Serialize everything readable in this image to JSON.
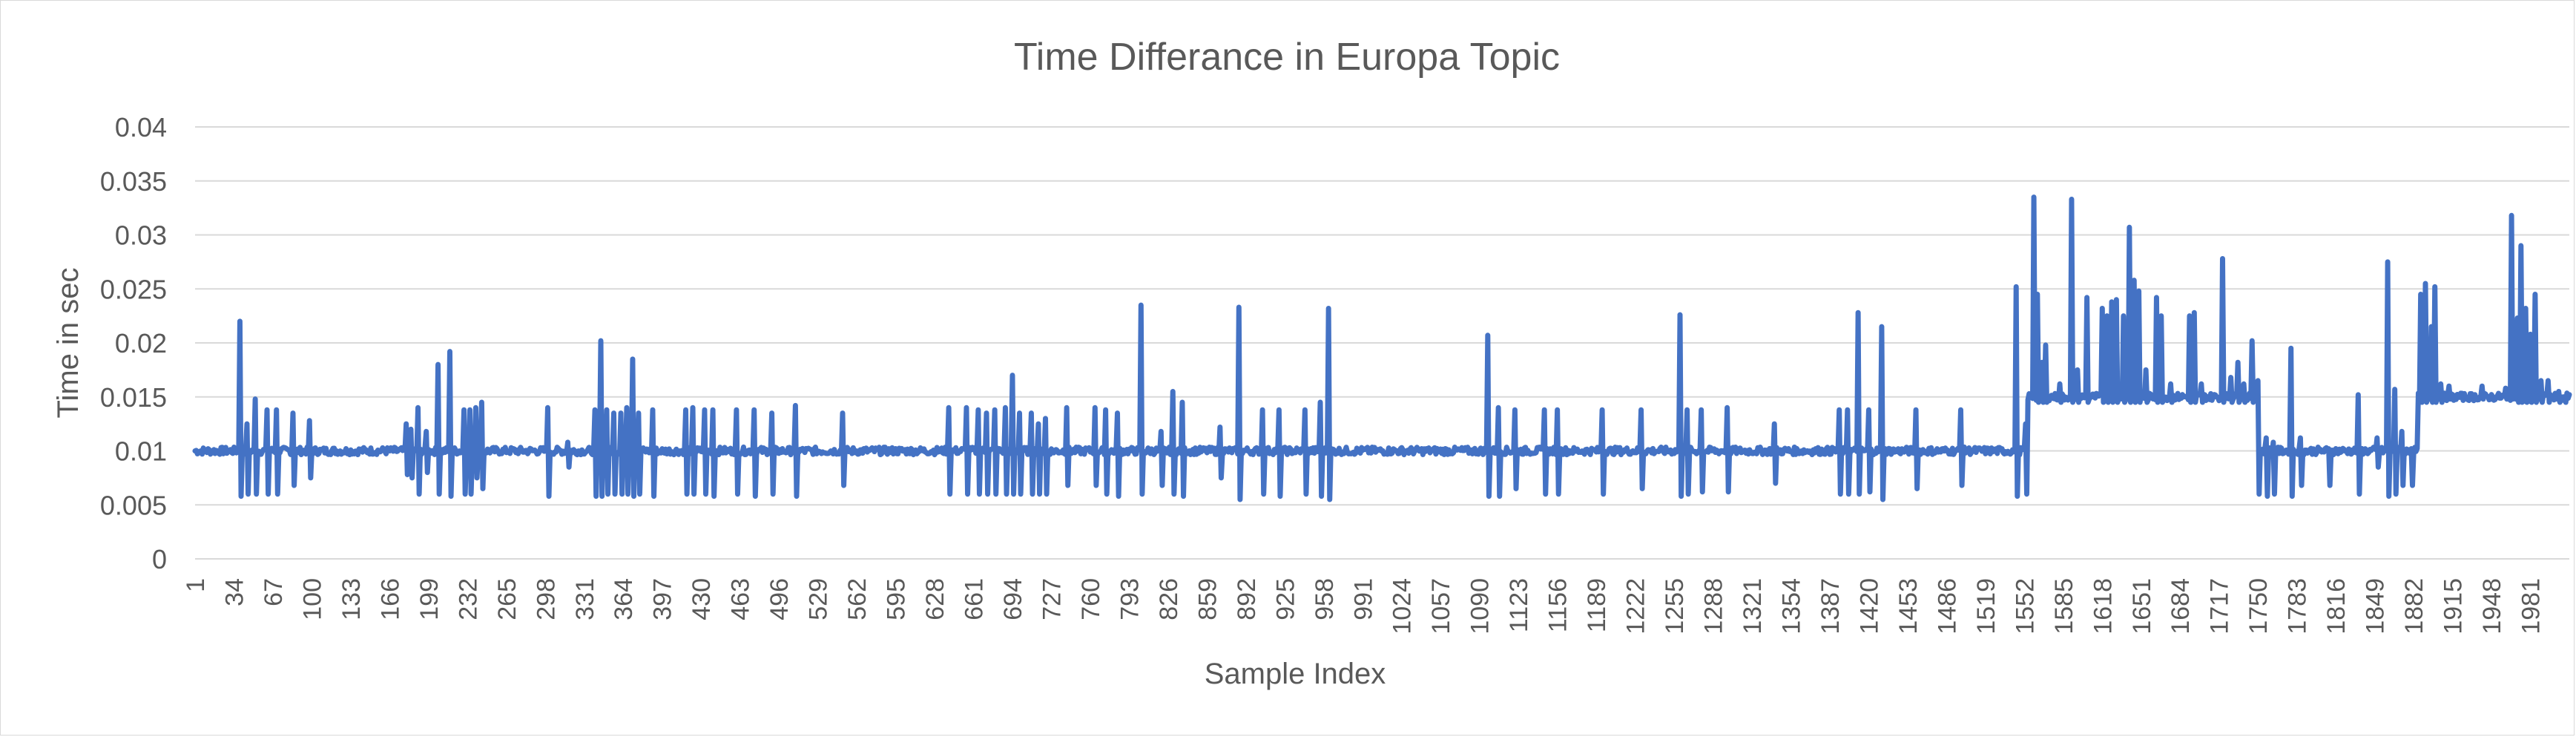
{
  "chart_data": {
    "type": "line",
    "title": "Time Differance in Europa Topic",
    "xlabel": "Sample Index",
    "ylabel": "Time in sec",
    "ylim": [
      0,
      0.04
    ],
    "y_ticks": [
      "0",
      "0.005",
      "0.01",
      "0.015",
      "0.02",
      "0.025",
      "0.03",
      "0.035",
      "0.04"
    ],
    "x_range": [
      1,
      2014
    ],
    "x_ticks": [
      "1",
      "34",
      "67",
      "100",
      "133",
      "166",
      "199",
      "232",
      "265",
      "298",
      "331",
      "364",
      "397",
      "430",
      "463",
      "496",
      "529",
      "562",
      "595",
      "628",
      "661",
      "694",
      "727",
      "760",
      "793",
      "826",
      "859",
      "892",
      "925",
      "958",
      "991",
      "1024",
      "1057",
      "1090",
      "1123",
      "1156",
      "1189",
      "1222",
      "1255",
      "1288",
      "1321",
      "1354",
      "1387",
      "1420",
      "1453",
      "1486",
      "1519",
      "1552",
      "1585",
      "1618",
      "1651",
      "1684",
      "1717",
      "1750",
      "1783",
      "1816",
      "1849",
      "1882",
      "1915",
      "1948",
      "1981"
    ],
    "grid": true,
    "legend": "none",
    "series_color": "#4472c4",
    "series": [
      {
        "baseline_segments": [
          {
            "from": 1,
            "to": 1552,
            "value": 0.01
          },
          {
            "from": 1553,
            "to": 1751,
            "value": 0.015
          },
          {
            "from": 1752,
            "to": 1885,
            "value": 0.01
          },
          {
            "from": 1886,
            "to": 2014,
            "value": 0.015
          }
        ],
        "spikes": [
          [
            39,
            0.022,
            0.0058
          ],
          [
            45,
            0.0125,
            0.006
          ],
          [
            52,
            0.0148,
            0.006
          ],
          [
            62,
            0.0138,
            0.006
          ],
          [
            70,
            0.0138,
            0.006
          ],
          [
            84,
            0.0135,
            0.0068
          ],
          [
            98,
            0.0128,
            0.0075
          ],
          [
            180,
            0.0125,
            0.0078
          ],
          [
            184,
            0.012,
            0.0075
          ],
          [
            190,
            0.014,
            0.006
          ],
          [
            197,
            0.0118,
            0.008
          ],
          [
            207,
            0.018,
            0.006
          ],
          [
            217,
            0.0192,
            0.0058
          ],
          [
            229,
            0.0138,
            0.006
          ],
          [
            234,
            0.0138,
            0.006
          ],
          [
            239,
            0.014,
            0.0075
          ],
          [
            244,
            0.0145,
            0.0065
          ],
          [
            300,
            0.014,
            0.0058
          ],
          [
            317,
            0.0108,
            0.0085
          ],
          [
            340,
            0.0138,
            0.0058
          ],
          [
            345,
            0.0202,
            0.0058
          ],
          [
            350,
            0.0138,
            0.006
          ],
          [
            356,
            0.0135,
            0.006
          ],
          [
            362,
            0.0135,
            0.006
          ],
          [
            367,
            0.014,
            0.006
          ],
          [
            372,
            0.0185,
            0.0058
          ],
          [
            377,
            0.0135,
            0.006
          ],
          [
            389,
            0.0138,
            0.0058
          ],
          [
            417,
            0.0138,
            0.006
          ],
          [
            423,
            0.014,
            0.006
          ],
          [
            433,
            0.0138,
            0.006
          ],
          [
            440,
            0.0138,
            0.0058
          ],
          [
            460,
            0.0138,
            0.006
          ],
          [
            475,
            0.0138,
            0.0058
          ],
          [
            490,
            0.0135,
            0.006
          ],
          [
            510,
            0.0142,
            0.0058
          ],
          [
            550,
            0.0135,
            0.0068
          ],
          [
            640,
            0.014,
            0.006
          ],
          [
            655,
            0.014,
            0.006
          ],
          [
            665,
            0.0138,
            0.006
          ],
          [
            672,
            0.0135,
            0.006
          ],
          [
            679,
            0.0138,
            0.006
          ],
          [
            688,
            0.014,
            0.006
          ],
          [
            694,
            0.017,
            0.006
          ],
          [
            700,
            0.0135,
            0.006
          ],
          [
            710,
            0.0135,
            0.006
          ],
          [
            716,
            0.0125,
            0.006
          ],
          [
            722,
            0.013,
            0.006
          ],
          [
            740,
            0.014,
            0.0068
          ],
          [
            764,
            0.014,
            0.0068
          ],
          [
            773,
            0.0138,
            0.006
          ],
          [
            783,
            0.0135,
            0.0058
          ],
          [
            803,
            0.0235,
            0.006
          ],
          [
            820,
            0.0118,
            0.0068
          ],
          [
            830,
            0.0155,
            0.006
          ],
          [
            838,
            0.0145,
            0.0058
          ],
          [
            870,
            0.0122,
            0.0075
          ],
          [
            886,
            0.0233,
            0.0055
          ],
          [
            906,
            0.0138,
            0.006
          ],
          [
            920,
            0.0138,
            0.0058
          ],
          [
            942,
            0.0138,
            0.006
          ],
          [
            955,
            0.0145,
            0.0058
          ],
          [
            962,
            0.0232,
            0.0055
          ],
          [
            1097,
            0.0207,
            0.0058
          ],
          [
            1106,
            0.014,
            0.0058
          ],
          [
            1120,
            0.0138,
            0.0065
          ],
          [
            1145,
            0.0138,
            0.006
          ],
          [
            1156,
            0.0138,
            0.006
          ],
          [
            1194,
            0.0138,
            0.006
          ],
          [
            1227,
            0.0138,
            0.0065
          ],
          [
            1260,
            0.0226,
            0.0058
          ],
          [
            1266,
            0.0138,
            0.006
          ],
          [
            1278,
            0.0138,
            0.0062
          ],
          [
            1300,
            0.014,
            0.0062
          ],
          [
            1340,
            0.0125,
            0.007
          ],
          [
            1395,
            0.0138,
            0.006
          ],
          [
            1402,
            0.0138,
            0.006
          ],
          [
            1411,
            0.0228,
            0.006
          ],
          [
            1420,
            0.0138,
            0.0062
          ],
          [
            1431,
            0.0215,
            0.0055
          ],
          [
            1460,
            0.0138,
            0.0065
          ],
          [
            1498,
            0.0138,
            0.0068
          ],
          [
            1545,
            0.0252,
            0.0058
          ],
          [
            1553,
            0.0125,
            0.006
          ],
          [
            1560,
            0.0335,
            0.015
          ],
          [
            1563,
            0.0245,
            0.0145
          ],
          [
            1567,
            0.0182,
            0.0145
          ],
          [
            1570,
            0.0198,
            0.0145
          ],
          [
            1582,
            0.0162,
            0.0145
          ],
          [
            1592,
            0.0333,
            0.0145
          ],
          [
            1597,
            0.0175,
            0.0145
          ],
          [
            1605,
            0.0242,
            0.0145
          ],
          [
            1618,
            0.0232,
            0.0145
          ],
          [
            1622,
            0.0225,
            0.0145
          ],
          [
            1626,
            0.0238,
            0.0145
          ],
          [
            1630,
            0.024,
            0.0145
          ],
          [
            1636,
            0.0225,
            0.0145
          ],
          [
            1641,
            0.0307,
            0.0145
          ],
          [
            1645,
            0.0258,
            0.0145
          ],
          [
            1649,
            0.0248,
            0.0145
          ],
          [
            1655,
            0.0175,
            0.0145
          ],
          [
            1664,
            0.0242,
            0.0145
          ],
          [
            1668,
            0.0225,
            0.0145
          ],
          [
            1676,
            0.0162,
            0.0145
          ],
          [
            1692,
            0.0225,
            0.0145
          ],
          [
            1696,
            0.0228,
            0.0145
          ],
          [
            1702,
            0.0162,
            0.0145
          ],
          [
            1720,
            0.0278,
            0.0145
          ],
          [
            1727,
            0.0168,
            0.0145
          ],
          [
            1733,
            0.0182,
            0.0145
          ],
          [
            1738,
            0.0162,
            0.0145
          ],
          [
            1745,
            0.0202,
            0.0145
          ],
          [
            1750,
            0.0165,
            0.006
          ],
          [
            1757,
            0.0112,
            0.0058
          ],
          [
            1763,
            0.0108,
            0.006
          ],
          [
            1778,
            0.0195,
            0.0058
          ],
          [
            1786,
            0.0112,
            0.0068
          ],
          [
            1810,
            0.0102,
            0.0068
          ],
          [
            1835,
            0.0152,
            0.006
          ],
          [
            1851,
            0.0112,
            0.0085
          ],
          [
            1860,
            0.0275,
            0.0058
          ],
          [
            1866,
            0.0157,
            0.006
          ],
          [
            1872,
            0.0118,
            0.0068
          ],
          [
            1880,
            0.0102,
            0.0068
          ],
          [
            1888,
            0.0245,
            0.0145
          ],
          [
            1892,
            0.0255,
            0.0145
          ],
          [
            1897,
            0.0215,
            0.0145
          ],
          [
            1900,
            0.0252,
            0.0145
          ],
          [
            1905,
            0.0162,
            0.0145
          ],
          [
            1912,
            0.016,
            0.0148
          ],
          [
            1940,
            0.016,
            0.0148
          ],
          [
            1960,
            0.0158,
            0.0148
          ],
          [
            1965,
            0.0318,
            0.0148
          ],
          [
            1970,
            0.0223,
            0.0145
          ],
          [
            1973,
            0.029,
            0.0145
          ],
          [
            1977,
            0.0232,
            0.0145
          ],
          [
            1981,
            0.0208,
            0.0145
          ],
          [
            1985,
            0.0245,
            0.0145
          ],
          [
            1990,
            0.0165,
            0.0145
          ],
          [
            1996,
            0.0165,
            0.0145
          ],
          [
            2005,
            0.0155,
            0.0145
          ],
          [
            2010,
            0.015,
            0.0145
          ]
        ]
      }
    ]
  }
}
